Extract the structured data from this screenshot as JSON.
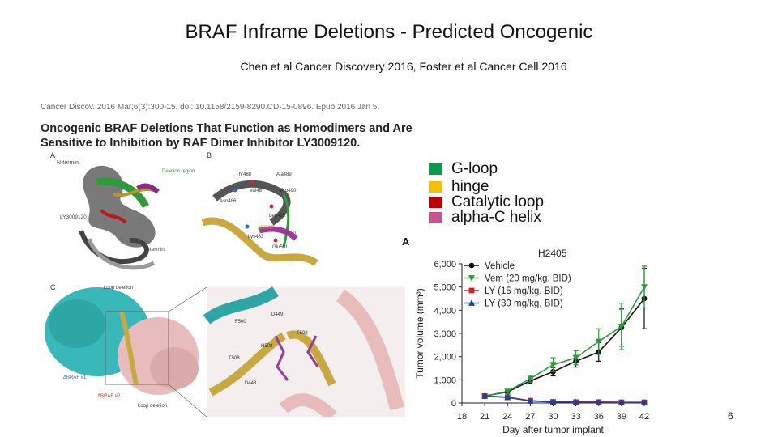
{
  "slide": {
    "title": "BRAF Inframe Deletions - Predicted Oncogenic",
    "subtitle": "Chen et al Cancer Discovery 2016, Foster et al Cancer Cell 2016",
    "page_number": "6"
  },
  "paper": {
    "citation": "Cancer Discov. 2016 Mar;6(3):300-15. doi: 10.1158/2159-8290.CD-15-0896. Epub 2016 Jan 5.",
    "title_line1": "Oncogenic BRAF Deletions That Function as Homodimers and Are",
    "title_line2": "Sensitive to Inhibition by RAF Dimer Inhibitor LY3009120."
  },
  "structure_figure": {
    "panel_a": "A",
    "panel_b": "B",
    "panel_c": "C",
    "labels_a": [
      "N-termini",
      "Deletion region",
      "LY3009120",
      "C-termini"
    ],
    "labels_b": [
      "Thr488",
      "Ala489",
      "Val487",
      "Pro490",
      "Asn486",
      "Leu485",
      "αC-in",
      "ΔBRAF",
      "Lys483",
      "Glu501"
    ],
    "labels_c": [
      "Loop deletion",
      "ΔBRAF #1",
      "ΔBRAF #2",
      "Loop deletion",
      "D449",
      "F500",
      "T508",
      "H508",
      "T508",
      "D448"
    ]
  },
  "legend": {
    "items": [
      {
        "label": "G-loop",
        "color": "#0a9a4a"
      },
      {
        "label": "hinge",
        "color": "#f5c000"
      },
      {
        "label": "Catalytic loop",
        "color": "#c00000"
      },
      {
        "label": "alpha-C helix",
        "color": "#c8518f"
      }
    ]
  },
  "chart_data": {
    "type": "line",
    "panel_label": "A",
    "title": "H2405",
    "xlabel": "Day after tumor implant",
    "ylabel": "Tumor volume (mm³)",
    "xlim": [
      18,
      42
    ],
    "ylim": [
      0,
      6000
    ],
    "x_ticks": [
      "18",
      "21",
      "24",
      "27",
      "30",
      "33",
      "36",
      "39",
      "42"
    ],
    "y_ticks": [
      "0",
      "1,000",
      "2,000",
      "3,000",
      "4,000",
      "5,000",
      "6,000"
    ],
    "grid": false,
    "legend_position": "top-left",
    "series": [
      {
        "name": "Vehicle",
        "color": "#111111",
        "marker": "circle",
        "x": [
          21,
          24,
          27,
          30,
          33,
          36,
          39,
          42
        ],
        "y": [
          300,
          480,
          950,
          1350,
          1800,
          2200,
          3250,
          4500
        ],
        "err": [
          60,
          80,
          120,
          180,
          250,
          400,
          800,
          1300
        ]
      },
      {
        "name": "Vem (20 mg/kg, BID)",
        "color": "#2a9a3a",
        "marker": "triangle-down",
        "x": [
          21,
          24,
          27,
          30,
          33,
          36,
          39,
          42
        ],
        "y": [
          300,
          500,
          1050,
          1650,
          1950,
          2650,
          3300,
          5000
        ],
        "err": [
          60,
          90,
          150,
          300,
          300,
          550,
          1000,
          900
        ]
      },
      {
        "name": "LY (15 mg/kg, BID)",
        "color": "#d0202a",
        "marker": "square",
        "x": [
          21,
          24,
          27,
          30,
          33,
          36,
          39,
          42
        ],
        "y": [
          300,
          250,
          100,
          50,
          40,
          40,
          30,
          30
        ],
        "err": [
          50,
          40,
          30,
          20,
          20,
          20,
          15,
          15
        ]
      },
      {
        "name": "LY (30 mg/kg, BID)",
        "color": "#1f3f9f",
        "marker": "triangle-up",
        "x": [
          21,
          24,
          27,
          30,
          33,
          36,
          39,
          42
        ],
        "y": [
          300,
          240,
          90,
          40,
          35,
          30,
          25,
          25
        ],
        "err": [
          50,
          40,
          30,
          20,
          20,
          20,
          15,
          15
        ]
      }
    ]
  }
}
